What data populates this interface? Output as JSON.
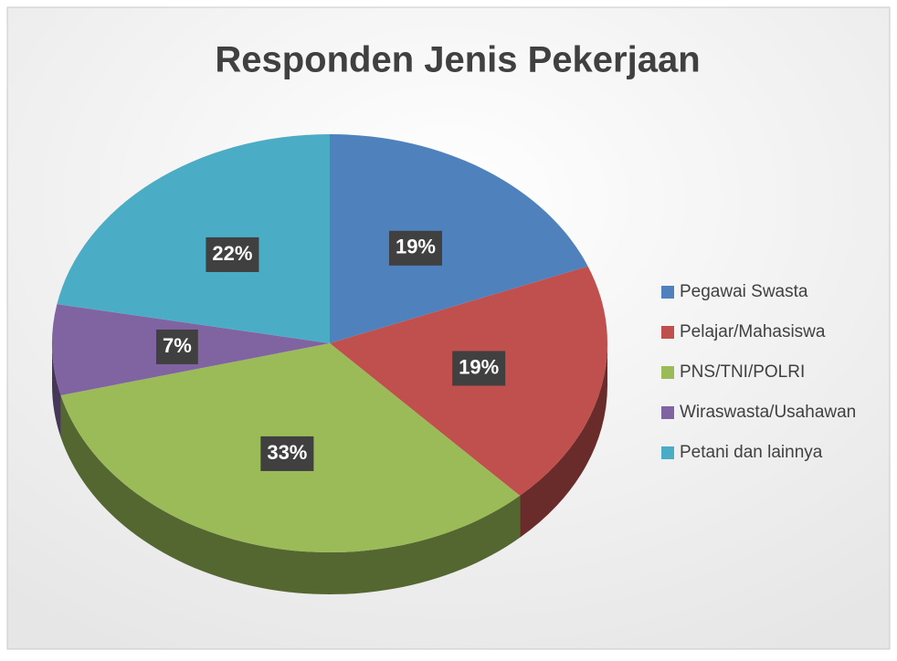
{
  "chart_data": {
    "type": "pie3d",
    "title": "Responden Jenis Pekerjaan",
    "categories": [
      "Pegawai Swasta",
      "Pelajar/Mahasiswa",
      "PNS/TNI/POLRI",
      "Wiraswasta/Usahawan",
      "Petani dan lainnya"
    ],
    "values": [
      19,
      19,
      33,
      7,
      22
    ],
    "value_labels": [
      "19%",
      "19%",
      "33%",
      "7%",
      "22%"
    ],
    "colors": [
      "#4f81bd",
      "#c0504d",
      "#9bbb59",
      "#8064a2",
      "#4bacc6"
    ],
    "legend": "right"
  }
}
